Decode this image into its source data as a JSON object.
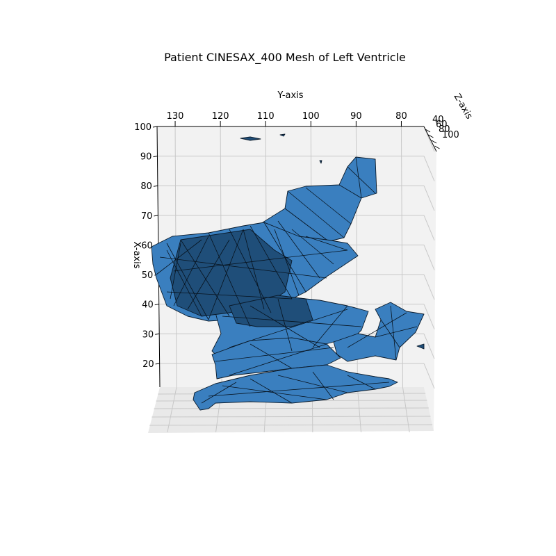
{
  "chart_data": {
    "type": "3d-surface-mesh",
    "title": "Patient CINESAX_400 Mesh of Left Ventricle",
    "xlabel": "X-axis",
    "ylabel": "Y-axis",
    "zlabel": "Z-axis",
    "x_ticks": [
      "20",
      "30",
      "40",
      "50",
      "60",
      "70",
      "80",
      "90",
      "100"
    ],
    "y_ticks": [
      "130",
      "120",
      "110",
      "100",
      "90",
      "80"
    ],
    "z_ticks": [
      "40",
      "60",
      "80",
      "100"
    ],
    "xlim": [
      12,
      100
    ],
    "ylim": [
      134,
      75
    ],
    "grid": true,
    "mesh_color": "#3a7fbf",
    "edge_color": "#0a1a2a"
  }
}
